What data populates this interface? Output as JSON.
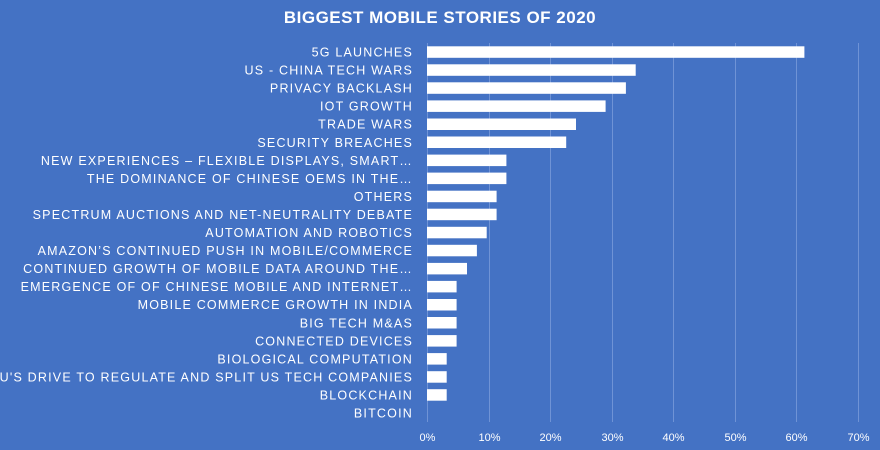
{
  "chart_data": {
    "type": "bar",
    "orientation": "horizontal",
    "title": "BIGGEST MOBILE STORIES OF 2020",
    "xlabel": "",
    "ylabel": "",
    "xlim": [
      0,
      70
    ],
    "grid": true,
    "categories": [
      "5G LAUNCHES",
      "US - CHINA TECH WARS",
      "PRIVACY BACKLASH",
      "IOT GROWTH",
      "TRADE WARS",
      "SECURITY BREACHES",
      "NEW EXPERIENCES – FLEXIBLE DISPLAYS, SMART…",
      "THE DOMINANCE OF CHINESE OEMS IN THE…",
      "OTHERS",
      "SPECTRUM AUCTIONS AND NET-NEUTRALITY DEBATE",
      "AUTOMATION AND ROBOTICS",
      "AMAZON’S CONTINUED PUSH IN MOBILE/COMMERCE",
      "CONTINUED GROWTH OF MOBILE DATA AROUND THE…",
      "EMERGENCE OF OF CHINESE MOBILE AND INTERNET…",
      "MOBILE COMMERCE GROWTH IN INDIA",
      "BIG TECH M&AS",
      "CONNECTED DEVICES",
      "BIOLOGICAL COMPUTATION",
      "EU'S DRIVE TO REGULATE AND SPLIT US TECH COMPANIES",
      "BLOCKCHAIN",
      "BITCOIN"
    ],
    "values": [
      61.3,
      33.9,
      32.3,
      29.0,
      24.2,
      22.6,
      12.9,
      12.9,
      11.3,
      11.3,
      9.7,
      8.1,
      6.5,
      4.8,
      4.8,
      4.8,
      4.8,
      3.2,
      3.2,
      3.2,
      0
    ],
    "ticks": [
      0,
      10,
      20,
      30,
      40,
      50,
      60,
      70
    ],
    "tick_labels": [
      "0%",
      "10%",
      "20%",
      "30%",
      "40%",
      "50%",
      "60%",
      "70%"
    ],
    "colors": {
      "background": "#4472c4",
      "bar": "#ffffff",
      "grid": "#6f93d6",
      "text": "#ffffff"
    }
  }
}
